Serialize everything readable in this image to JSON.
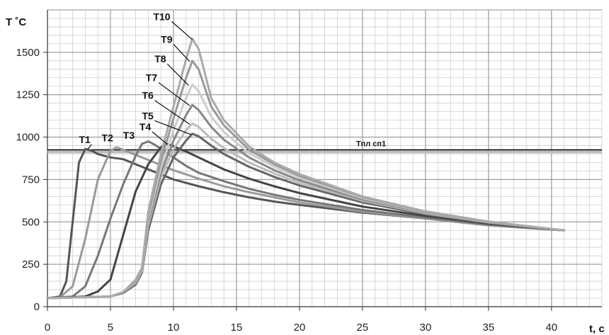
{
  "chart_data": {
    "type": "line",
    "title": "",
    "xlabel": "t, c",
    "ylabel": "T ˚C",
    "xlim": [
      0,
      44
    ],
    "ylim": [
      0,
      1750
    ],
    "xticks": [
      0,
      5,
      10,
      15,
      20,
      25,
      30,
      35,
      40
    ],
    "yticks": [
      0,
      250,
      500,
      750,
      1000,
      1250,
      1500
    ],
    "grid": true,
    "legend": "inline labels",
    "reference_line": {
      "name": "Тпл сп1",
      "y": 925
    },
    "series": [
      {
        "name": "T1",
        "color": "#555555",
        "points": [
          [
            0,
            50
          ],
          [
            1,
            60
          ],
          [
            1.5,
            150
          ],
          [
            2,
            500
          ],
          [
            2.5,
            850
          ],
          [
            3,
            930
          ],
          [
            3.5,
            920
          ],
          [
            4,
            900
          ],
          [
            5,
            880
          ],
          [
            6,
            870
          ],
          [
            7,
            840
          ],
          [
            8,
            810
          ],
          [
            9,
            780
          ],
          [
            10,
            750
          ],
          [
            12,
            710
          ],
          [
            14,
            675
          ],
          [
            16,
            645
          ],
          [
            18,
            620
          ],
          [
            20,
            600
          ],
          [
            25,
            555
          ],
          [
            30,
            520
          ],
          [
            35,
            480
          ],
          [
            41,
            450
          ]
        ]
      },
      {
        "name": "T2",
        "color": "#9a9a9a",
        "points": [
          [
            0,
            50
          ],
          [
            1,
            55
          ],
          [
            2,
            120
          ],
          [
            3,
            400
          ],
          [
            4,
            750
          ],
          [
            5,
            920
          ],
          [
            5.5,
            940
          ],
          [
            6,
            925
          ],
          [
            7,
            895
          ],
          [
            8,
            865
          ],
          [
            9,
            835
          ],
          [
            10,
            805
          ],
          [
            12,
            755
          ],
          [
            14,
            710
          ],
          [
            16,
            675
          ],
          [
            18,
            645
          ],
          [
            20,
            615
          ],
          [
            25,
            560
          ],
          [
            30,
            520
          ],
          [
            35,
            480
          ],
          [
            41,
            450
          ]
        ]
      },
      {
        "name": "T3",
        "color": "#777777",
        "points": [
          [
            0,
            50
          ],
          [
            2,
            60
          ],
          [
            3,
            120
          ],
          [
            4,
            300
          ],
          [
            5,
            520
          ],
          [
            6,
            720
          ],
          [
            7,
            890
          ],
          [
            7.5,
            960
          ],
          [
            8,
            975
          ],
          [
            8.5,
            955
          ],
          [
            9,
            930
          ],
          [
            10,
            880
          ],
          [
            11,
            830
          ],
          [
            12,
            790
          ],
          [
            14,
            740
          ],
          [
            16,
            695
          ],
          [
            18,
            660
          ],
          [
            20,
            630
          ],
          [
            25,
            570
          ],
          [
            30,
            525
          ],
          [
            35,
            485
          ],
          [
            41,
            450
          ]
        ]
      },
      {
        "name": "T4",
        "color": "#444444",
        "points": [
          [
            0,
            50
          ],
          [
            3,
            60
          ],
          [
            4,
            90
          ],
          [
            5,
            160
          ],
          [
            6,
            420
          ],
          [
            7,
            680
          ],
          [
            8,
            840
          ],
          [
            9,
            940
          ],
          [
            9.5,
            960
          ],
          [
            10,
            945
          ],
          [
            11,
            915
          ],
          [
            12,
            880
          ],
          [
            13,
            845
          ],
          [
            14,
            810
          ],
          [
            16,
            755
          ],
          [
            18,
            710
          ],
          [
            20,
            670
          ],
          [
            25,
            590
          ],
          [
            30,
            535
          ],
          [
            35,
            490
          ],
          [
            41,
            450
          ]
        ]
      },
      {
        "name": "T5",
        "color": "#666666",
        "points": [
          [
            0,
            50
          ],
          [
            5,
            60
          ],
          [
            6,
            80
          ],
          [
            7,
            130
          ],
          [
            7.5,
            200
          ],
          [
            8,
            450
          ],
          [
            9,
            720
          ],
          [
            10,
            880
          ],
          [
            11,
            980
          ],
          [
            11.5,
            1020
          ],
          [
            12,
            1005
          ],
          [
            13,
            950
          ],
          [
            14,
            900
          ],
          [
            16,
            825
          ],
          [
            18,
            765
          ],
          [
            20,
            715
          ],
          [
            25,
            615
          ],
          [
            30,
            545
          ],
          [
            35,
            495
          ],
          [
            41,
            450
          ]
        ]
      },
      {
        "name": "T6",
        "color": "#bbbbbb",
        "points": [
          [
            0,
            50
          ],
          [
            5,
            60
          ],
          [
            6,
            85
          ],
          [
            7,
            140
          ],
          [
            7.5,
            210
          ],
          [
            8,
            480
          ],
          [
            9,
            760
          ],
          [
            10,
            930
          ],
          [
            11,
            1040
          ],
          [
            11.5,
            1080
          ],
          [
            12,
            1060
          ],
          [
            13,
            990
          ],
          [
            14,
            935
          ],
          [
            16,
            850
          ],
          [
            18,
            785
          ],
          [
            20,
            730
          ],
          [
            25,
            625
          ],
          [
            30,
            550
          ],
          [
            35,
            497
          ],
          [
            41,
            450
          ]
        ]
      },
      {
        "name": "T7",
        "color": "#888888",
        "points": [
          [
            0,
            50
          ],
          [
            5,
            60
          ],
          [
            6,
            85
          ],
          [
            7,
            145
          ],
          [
            7.5,
            215
          ],
          [
            8,
            500
          ],
          [
            9,
            790
          ],
          [
            10,
            980
          ],
          [
            11,
            1130
          ],
          [
            11.5,
            1190
          ],
          [
            12,
            1160
          ],
          [
            13,
            1060
          ],
          [
            14,
            985
          ],
          [
            16,
            880
          ],
          [
            18,
            805
          ],
          [
            20,
            745
          ],
          [
            25,
            632
          ],
          [
            30,
            555
          ],
          [
            35,
            499
          ],
          [
            41,
            450
          ]
        ]
      },
      {
        "name": "T8",
        "color": "#cccccc",
        "points": [
          [
            0,
            50
          ],
          [
            5,
            60
          ],
          [
            6,
            85
          ],
          [
            7,
            150
          ],
          [
            7.5,
            220
          ],
          [
            8,
            520
          ],
          [
            9,
            820
          ],
          [
            10,
            1040
          ],
          [
            11,
            1230
          ],
          [
            11.5,
            1310
          ],
          [
            12,
            1270
          ],
          [
            13,
            1120
          ],
          [
            14,
            1030
          ],
          [
            16,
            905
          ],
          [
            18,
            825
          ],
          [
            20,
            760
          ],
          [
            25,
            640
          ],
          [
            30,
            558
          ],
          [
            35,
            500
          ],
          [
            41,
            450
          ]
        ]
      },
      {
        "name": "T9",
        "color": "#999999",
        "points": [
          [
            0,
            50
          ],
          [
            5,
            60
          ],
          [
            6,
            85
          ],
          [
            7,
            155
          ],
          [
            7.5,
            225
          ],
          [
            8,
            540
          ],
          [
            9,
            860
          ],
          [
            10,
            1110
          ],
          [
            11,
            1350
          ],
          [
            11.5,
            1450
          ],
          [
            12,
            1400
          ],
          [
            13,
            1180
          ],
          [
            14,
            1070
          ],
          [
            16,
            925
          ],
          [
            18,
            840
          ],
          [
            20,
            772
          ],
          [
            25,
            646
          ],
          [
            30,
            560
          ],
          [
            35,
            501
          ],
          [
            41,
            450
          ]
        ]
      },
      {
        "name": "T10",
        "color": "#aaaaaa",
        "points": [
          [
            0,
            50
          ],
          [
            5,
            60
          ],
          [
            6,
            85
          ],
          [
            7,
            160
          ],
          [
            7.5,
            230
          ],
          [
            8,
            560
          ],
          [
            9,
            900
          ],
          [
            10,
            1180
          ],
          [
            11,
            1460
          ],
          [
            11.5,
            1580
          ],
          [
            12,
            1520
          ],
          [
            13,
            1230
          ],
          [
            14,
            1100
          ],
          [
            16,
            945
          ],
          [
            18,
            850
          ],
          [
            20,
            782
          ],
          [
            25,
            650
          ],
          [
            30,
            562
          ],
          [
            35,
            502
          ],
          [
            41,
            450
          ]
        ]
      }
    ],
    "labels": [
      {
        "text": "T1",
        "at": [
          2.5,
          965
        ],
        "lx": 3.2,
        "ly": 930
      },
      {
        "text": "T2",
        "at": [
          4.3,
          975
        ],
        "lx": 5.2,
        "ly": 940
      },
      {
        "text": "T3",
        "at": [
          6.0,
          990
        ],
        "lx": 7.3,
        "ly": 965
      },
      {
        "text": "T4",
        "at": [
          7.3,
          1040
        ],
        "lx": 9.5,
        "ly": 958
      },
      {
        "text": "T5",
        "at": [
          7.5,
          1105
        ],
        "lx": 11.4,
        "ly": 1015
      },
      {
        "text": "T6",
        "at": [
          7.5,
          1225
        ],
        "lx": 11.3,
        "ly": 1075
      },
      {
        "text": "T7",
        "at": [
          7.8,
          1330
        ],
        "lx": 11.3,
        "ly": 1185
      },
      {
        "text": "T8",
        "at": [
          8.5,
          1440
        ],
        "lx": 11.2,
        "ly": 1305
      },
      {
        "text": "T9",
        "at": [
          9.0,
          1555
        ],
        "lx": 11.3,
        "ly": 1445
      },
      {
        "text": "T10",
        "at": [
          8.4,
          1690
        ],
        "lx": 11.5,
        "ly": 1575
      }
    ]
  }
}
